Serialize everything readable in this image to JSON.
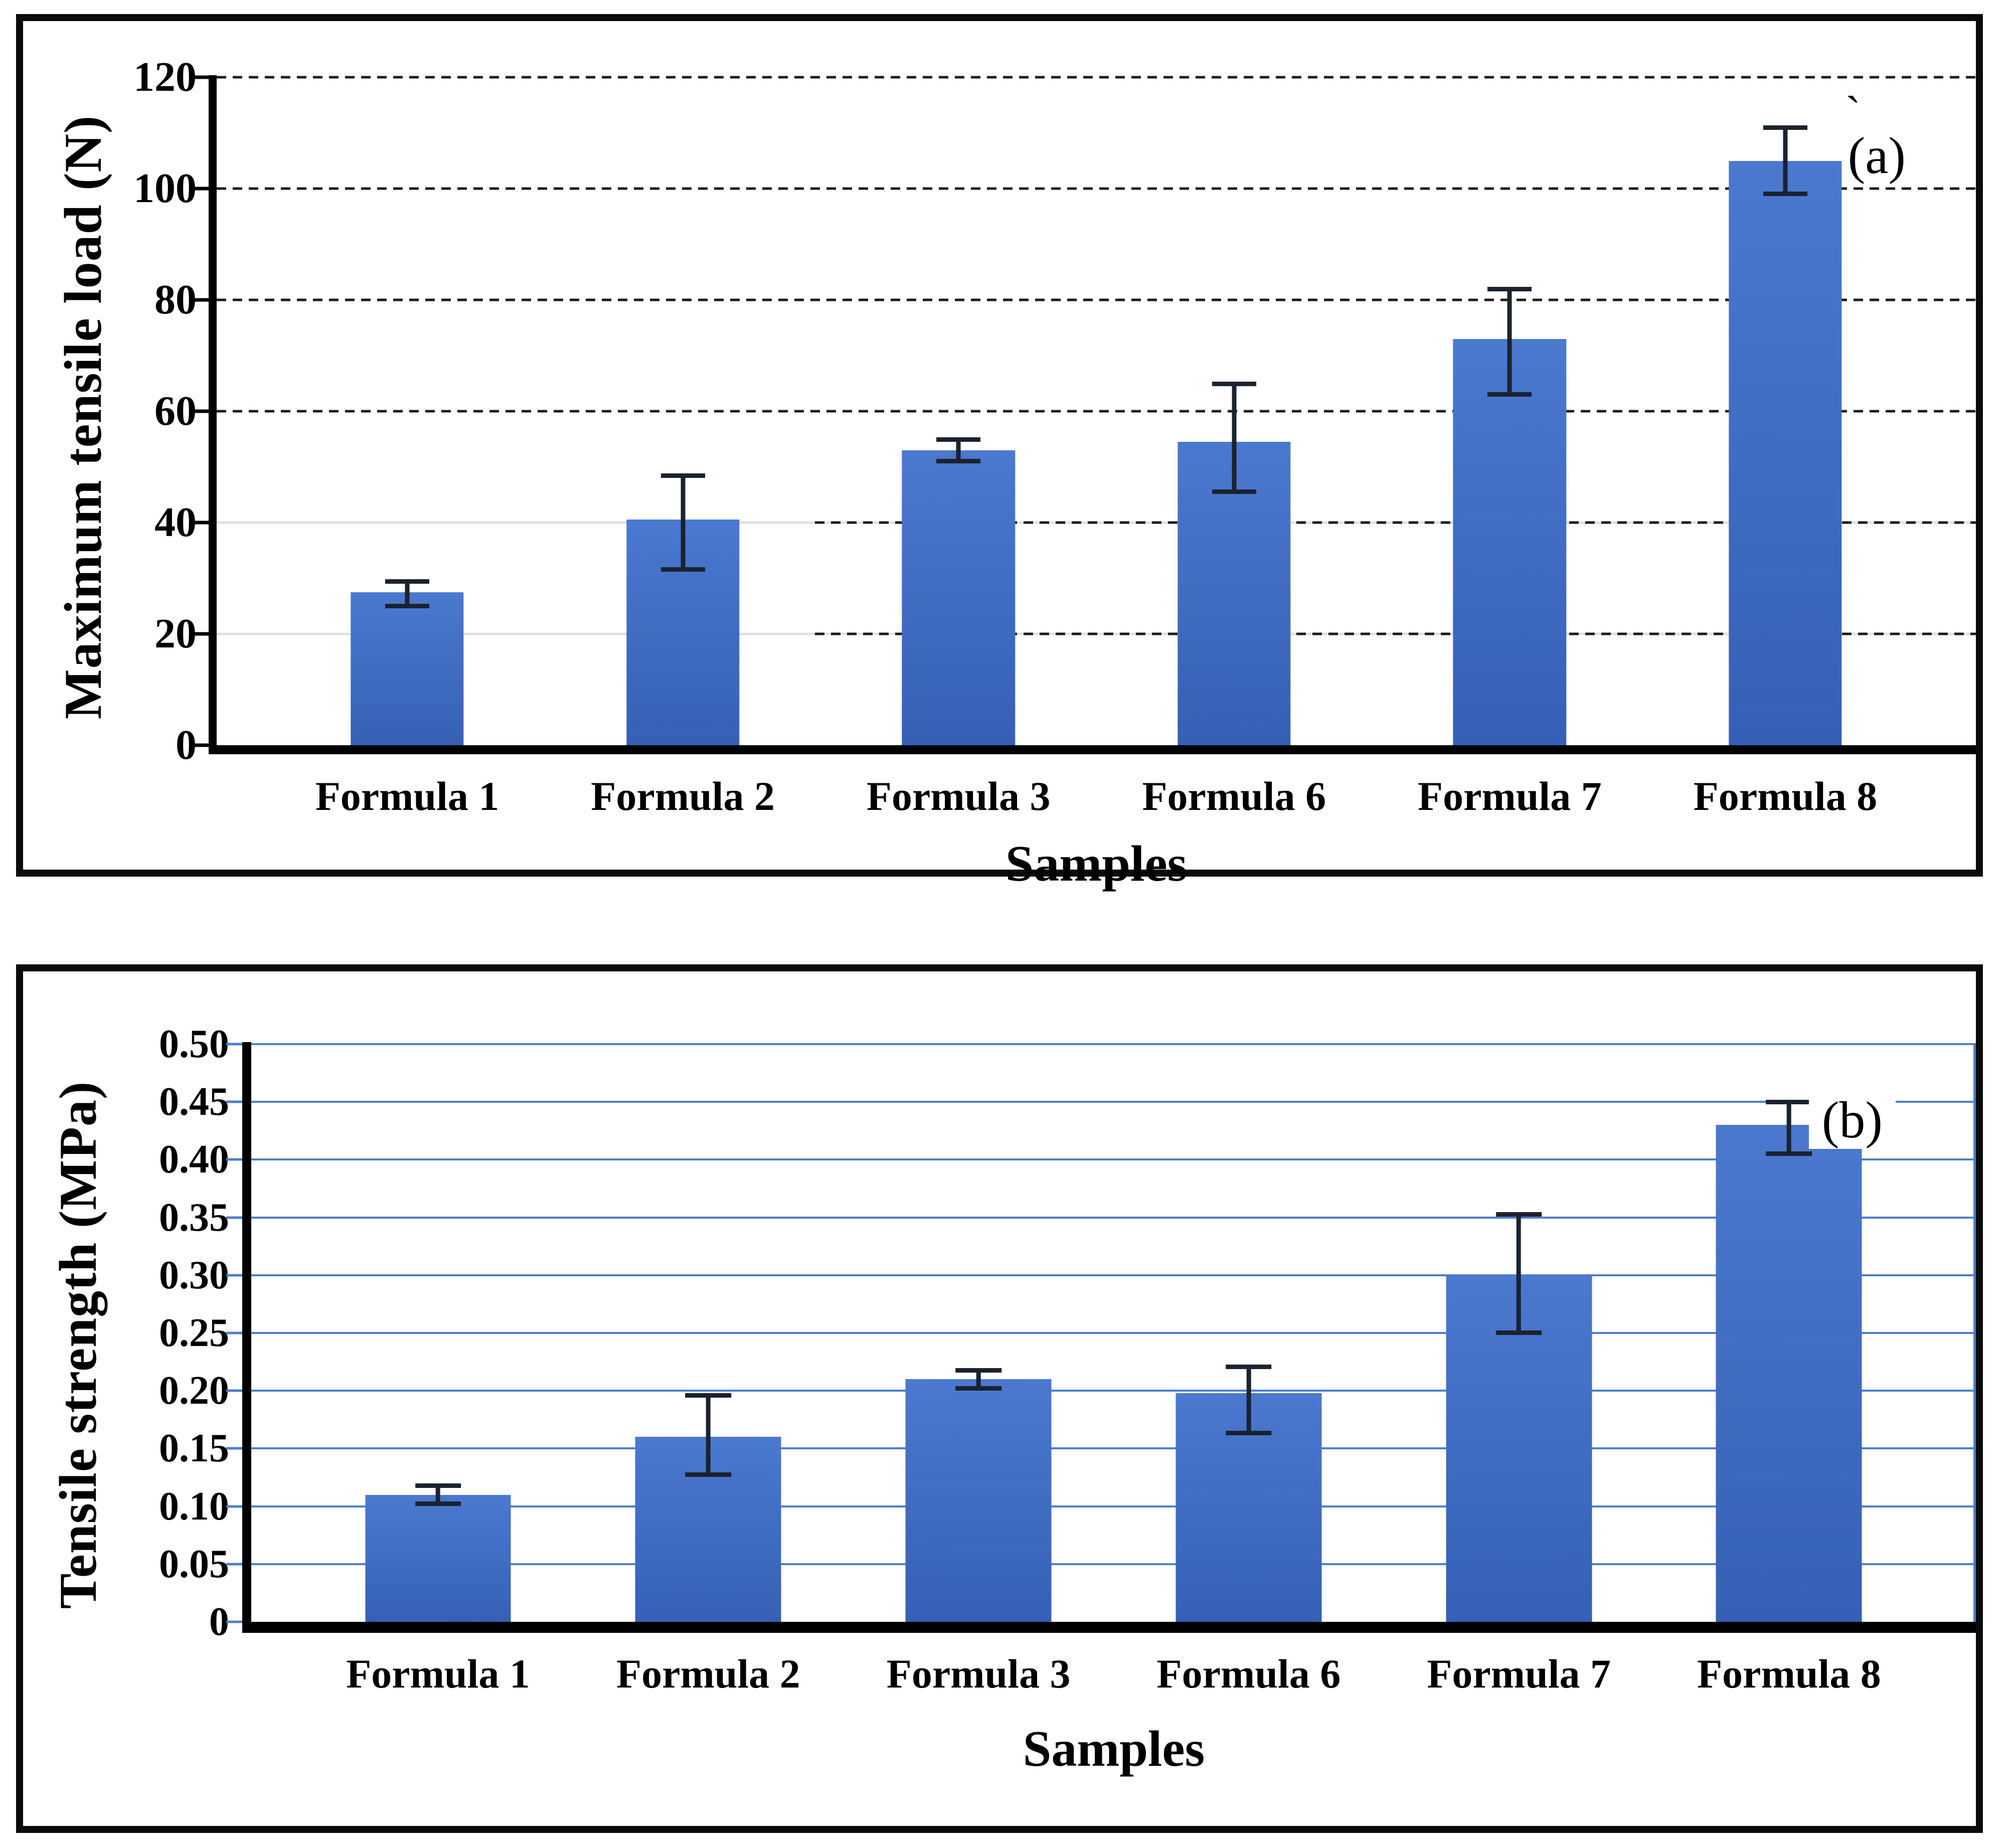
{
  "figure": {
    "background": "#ffffff",
    "border_color": "#0b0b0b"
  },
  "chart_data": [
    {
      "type": "bar",
      "panel": "a",
      "corner_label": "(a)",
      "stray_mark": "`",
      "title": "",
      "xlabel": "Samples",
      "ylabel": "Maximum tensile load (N)",
      "ylim": [
        0,
        120
      ],
      "ytick_step": 20,
      "ytick_values": [
        0,
        20,
        40,
        60,
        80,
        100,
        120
      ],
      "ytick_labels": [
        "0",
        "20",
        "40",
        "60",
        "80",
        "100",
        "120"
      ],
      "grid": "dashed-black",
      "mixed_ticks": [
        20,
        40
      ],
      "legend": "none",
      "categories": [
        "Formula 1",
        "Formula 2",
        "Formula 3",
        "Formula 6",
        "Formula 7",
        "Formula 8"
      ],
      "values": [
        27.5,
        40.5,
        53,
        54.5,
        73,
        105
      ],
      "error_low": [
        25,
        31.5,
        51,
        45.5,
        63,
        99
      ],
      "error_high": [
        29.5,
        48.5,
        55,
        65,
        82,
        111
      ],
      "bar_fraction": 0.41,
      "cap_fraction": 0.16,
      "inset_pct": 3,
      "colors": {
        "bar_top": "#4b79cf",
        "bar_bottom": "#3560b5",
        "error": "#1b2230",
        "grid_dash": "#1a1a1a",
        "grid_light": "#dde1e7",
        "axis": "#000000"
      }
    },
    {
      "type": "bar",
      "panel": "b",
      "corner_label": "(b)",
      "stray_mark": "",
      "title": "",
      "xlabel": "Samples",
      "ylabel": "Tensile strength (MPa)",
      "ylim": [
        0,
        0.5
      ],
      "ytick_step": 0.05,
      "ytick_values": [
        0,
        0.05,
        0.1,
        0.15,
        0.2,
        0.25,
        0.3,
        0.35,
        0.4,
        0.45,
        0.5
      ],
      "ytick_labels": [
        "0",
        "0.05",
        "0.10",
        "0.15",
        "0.20",
        "0.25",
        "0.30",
        "0.35",
        "0.40",
        "0.45",
        "0.50"
      ],
      "grid": "solid-blue",
      "right_spine": true,
      "legend": "none",
      "categories": [
        "Formula 1",
        "Formula 2",
        "Formula 3",
        "Formula 6",
        "Formula 7",
        "Formula 8"
      ],
      "values": [
        0.11,
        0.16,
        0.21,
        0.198,
        0.3,
        0.43
      ],
      "error_low": [
        0.102,
        0.127,
        0.202,
        0.163,
        0.25,
        0.405
      ],
      "error_high": [
        0.118,
        0.196,
        0.218,
        0.221,
        0.353,
        0.45
      ],
      "bar_fraction": 0.54,
      "cap_fraction": 0.17,
      "inset_pct": 3,
      "colors": {
        "bar_top": "#4b79cf",
        "bar_bottom": "#3560b5",
        "error": "#1b2230",
        "grid_solid": "#4f7ec9",
        "axis": "#000000"
      }
    }
  ]
}
